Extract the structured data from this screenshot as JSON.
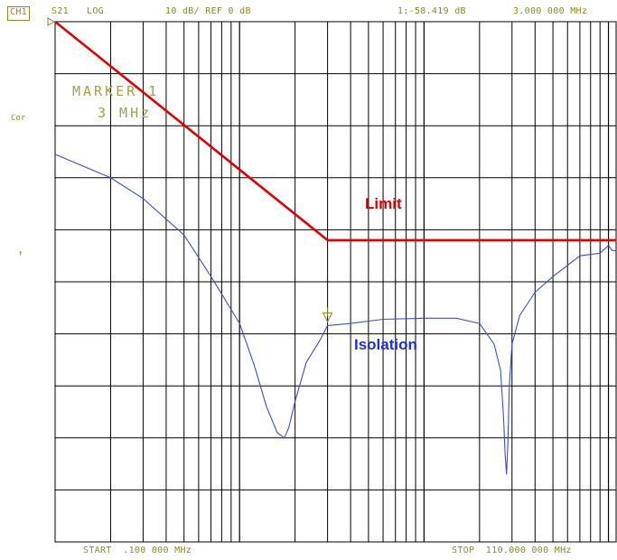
{
  "header": {
    "channel": "CH1",
    "param": "S21",
    "format": "LOG",
    "scale": "10 dB/ REF 0 dB",
    "marker_readout": "1:-58.419 dB",
    "marker_freq": "3.000 000 MHz"
  },
  "side_labels": {
    "cor": "Cor",
    "ref_arrow": "↑"
  },
  "marker_box": {
    "line1": "MARKER 1",
    "line2": "3 MHz"
  },
  "footer": {
    "start": "START  .100 000 MHz",
    "stop": "STOP  110.000 000 MHz"
  },
  "colors": {
    "grid": "#000000",
    "limit": "#e00000",
    "trace": "#3a4fcf",
    "annotation_text": "#8a8a2a"
  },
  "chart_data": {
    "type": "line",
    "x_scale": "log",
    "x_unit": "MHz",
    "xlim": [
      0.1,
      110
    ],
    "y_unit": "dB",
    "ylim": [
      -100,
      0
    ],
    "y_divisions": 10,
    "grid": true,
    "annotations": {
      "limit_label": "Limit",
      "trace_label": "Isolation"
    },
    "series": [
      {
        "name": "Limit",
        "color": "#e00000",
        "x": [
          0.1,
          3.0,
          110
        ],
        "y": [
          0,
          -42,
          -42
        ]
      },
      {
        "name": "Isolation",
        "color": "#3a4fcf",
        "x": [
          0.1,
          0.2,
          0.3,
          0.5,
          0.7,
          1.0,
          1.2,
          1.4,
          1.6,
          1.75,
          1.85,
          2.0,
          2.3,
          2.7,
          3.0,
          4.0,
          6.0,
          10,
          15,
          20,
          24,
          26,
          27,
          27.5,
          28,
          28.5,
          29,
          30,
          33,
          40,
          50,
          70,
          90,
          100,
          105,
          110
        ],
        "y": [
          -25.5,
          -30,
          -34,
          -41,
          -49,
          -58,
          -66,
          -74,
          -79,
          -80,
          -78,
          -73,
          -65.5,
          -61.5,
          -58.4,
          -58,
          -57.2,
          -57,
          -57,
          -58,
          -62,
          -67,
          -76,
          -83,
          -87,
          -81,
          -70,
          -62,
          -56.5,
          -52,
          -49,
          -45,
          -44.5,
          -43,
          -44,
          -44
        ]
      }
    ]
  }
}
